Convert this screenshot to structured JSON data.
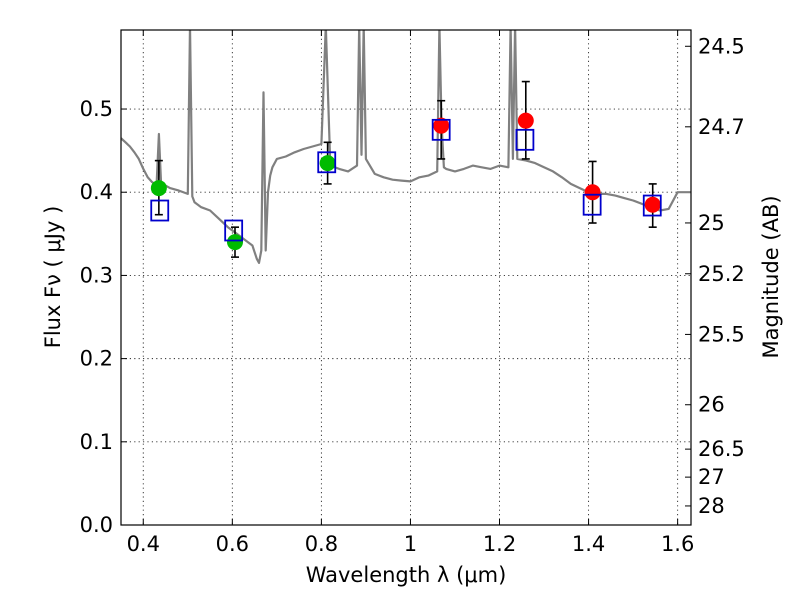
{
  "chart_data": {
    "type": "scatter",
    "xlabel": "Wavelength  λ (μm)",
    "ylabel": "Flux  Fν  ( μJy )",
    "y2label": "Magnitude (AB)",
    "xlim": [
      0.35,
      1.63
    ],
    "ylim": [
      0.0,
      0.595
    ],
    "x_ticks": [
      0.4,
      0.6,
      0.8,
      1.0,
      1.2,
      1.4,
      1.6
    ],
    "x_tick_labels": [
      "0.4",
      "0.6",
      "0.8",
      "1",
      "1.2",
      "1.4",
      "1.6"
    ],
    "y_ticks": [
      0.0,
      0.1,
      0.2,
      0.3,
      0.4,
      0.5
    ],
    "y_tick_labels": [
      "0.0",
      "0.1",
      "0.2",
      "0.3",
      "0.4",
      "0.5"
    ],
    "y2_ticks": [
      {
        "label": "24.5",
        "mag": 24.5
      },
      {
        "label": "24.7",
        "mag": 24.7
      },
      {
        "label": "25",
        "mag": 25.0
      },
      {
        "label": "25.2",
        "mag": 25.2
      },
      {
        "label": "25.5",
        "mag": 25.5
      },
      {
        "label": "26",
        "mag": 26.0
      },
      {
        "label": "26.5",
        "mag": 26.5
      },
      {
        "label": "27",
        "mag": 27.0
      },
      {
        "label": "28",
        "mag": 28.0
      }
    ],
    "grid": true,
    "colors": {
      "model": "#808080",
      "observed_green": "#00bb00",
      "observed_red": "#ff0000",
      "model_box": "#0000cc",
      "errorbar": "#000000"
    },
    "observed_points": [
      {
        "x": 0.435,
        "y": 0.405,
        "err_low": 0.032,
        "err_high": 0.033,
        "color": "green"
      },
      {
        "x": 0.606,
        "y": 0.34,
        "err_low": 0.018,
        "err_high": 0.018,
        "color": "green"
      },
      {
        "x": 0.814,
        "y": 0.435,
        "err_low": 0.025,
        "err_high": 0.025,
        "color": "green"
      },
      {
        "x": 1.069,
        "y": 0.48,
        "err_low": 0.04,
        "err_high": 0.03,
        "color": "red"
      },
      {
        "x": 1.259,
        "y": 0.486,
        "err_low": 0.046,
        "err_high": 0.047,
        "color": "red"
      },
      {
        "x": 1.409,
        "y": 0.4,
        "err_low": 0.037,
        "err_high": 0.037,
        "color": "red"
      },
      {
        "x": 1.544,
        "y": 0.385,
        "err_low": 0.027,
        "err_high": 0.025,
        "color": "red"
      }
    ],
    "model_points": [
      {
        "x": 0.437,
        "y": 0.378
      },
      {
        "x": 0.603,
        "y": 0.354
      },
      {
        "x": 0.812,
        "y": 0.436
      },
      {
        "x": 1.069,
        "y": 0.475
      },
      {
        "x": 1.257,
        "y": 0.463
      },
      {
        "x": 1.408,
        "y": 0.385
      },
      {
        "x": 1.543,
        "y": 0.384
      }
    ],
    "model_spectrum": {
      "x": [
        0.35,
        0.36,
        0.37,
        0.38,
        0.39,
        0.4,
        0.41,
        0.42,
        0.43,
        0.435,
        0.44,
        0.45,
        0.46,
        0.48,
        0.5,
        0.505,
        0.51,
        0.515,
        0.52,
        0.53,
        0.55,
        0.57,
        0.59,
        0.61,
        0.63,
        0.645,
        0.655,
        0.66,
        0.665,
        0.67,
        0.675,
        0.68,
        0.685,
        0.69,
        0.7,
        0.72,
        0.74,
        0.76,
        0.78,
        0.8,
        0.81,
        0.82,
        0.84,
        0.86,
        0.88,
        0.885,
        0.89,
        0.895,
        0.9,
        0.92,
        0.94,
        0.96,
        0.98,
        1.0,
        1.02,
        1.04,
        1.06,
        1.065,
        1.07,
        1.075,
        1.08,
        1.1,
        1.12,
        1.14,
        1.16,
        1.18,
        1.2,
        1.22,
        1.225,
        1.23,
        1.235,
        1.24,
        1.26,
        1.28,
        1.3,
        1.32,
        1.34,
        1.36,
        1.38,
        1.4,
        1.42,
        1.44,
        1.46,
        1.48,
        1.5,
        1.52,
        1.54,
        1.56,
        1.58,
        1.6,
        1.63
      ],
      "y": [
        0.465,
        0.46,
        0.455,
        0.448,
        0.44,
        0.428,
        0.418,
        0.412,
        0.409,
        0.47,
        0.41,
        0.408,
        0.405,
        0.402,
        0.398,
        0.6,
        0.395,
        0.388,
        0.386,
        0.382,
        0.378,
        0.368,
        0.358,
        0.35,
        0.342,
        0.336,
        0.32,
        0.315,
        0.33,
        0.52,
        0.33,
        0.4,
        0.42,
        0.43,
        0.44,
        0.443,
        0.448,
        0.452,
        0.455,
        0.458,
        0.6,
        0.432,
        0.428,
        0.425,
        0.432,
        0.6,
        0.445,
        0.6,
        0.44,
        0.422,
        0.418,
        0.415,
        0.414,
        0.413,
        0.418,
        0.42,
        0.425,
        0.6,
        0.48,
        0.43,
        0.428,
        0.425,
        0.428,
        0.432,
        0.43,
        0.428,
        0.432,
        0.43,
        0.6,
        0.44,
        0.6,
        0.44,
        0.438,
        0.435,
        0.43,
        0.425,
        0.418,
        0.41,
        0.405,
        0.4,
        0.398,
        0.398,
        0.396,
        0.393,
        0.39,
        0.386,
        0.382,
        0.378,
        0.38,
        0.4,
        0.4
      ]
    }
  }
}
